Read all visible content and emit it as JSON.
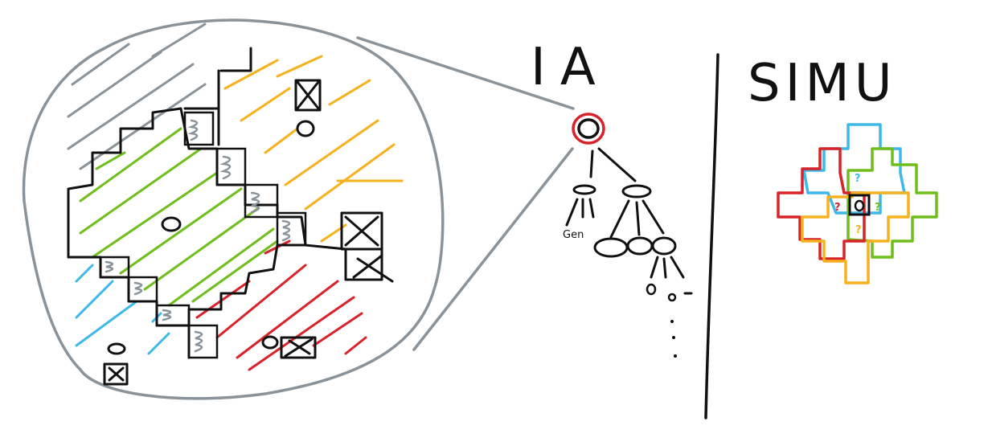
{
  "labels": {
    "ia": "IA",
    "simu": "SIMU",
    "leaf_small": "Gen"
  },
  "colors": {
    "ink": "#111111",
    "outline_gray": "#8a9399",
    "green": "#6fbe1c",
    "orange": "#f5b21e",
    "red": "#d9232a",
    "blue": "#3db8e8",
    "gray_hatch": "#8a9399"
  },
  "icons": [
    "crossed-box-icon",
    "ring-icon"
  ]
}
